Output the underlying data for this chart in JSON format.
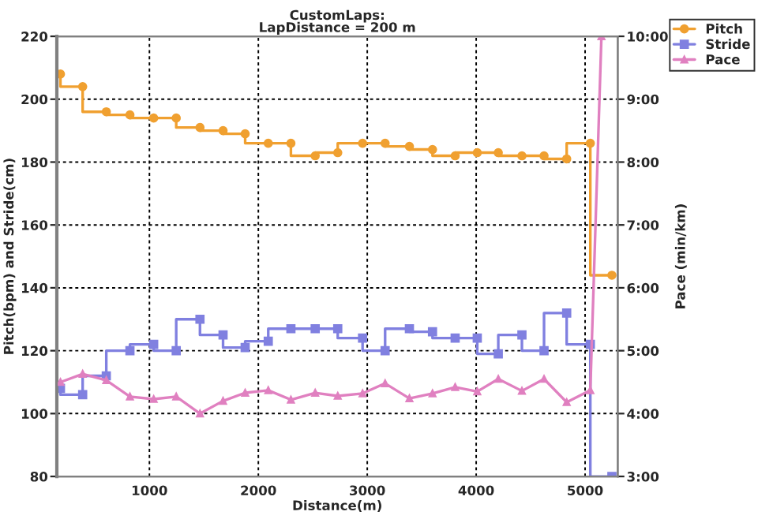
{
  "chart_data": {
    "type": "step",
    "title": "CustomLaps:\nLapDistance = 200 m",
    "xlabel": "Distance(m)",
    "ylabel": "Pitch(bpm) and Stride(cm)",
    "y2label": "Pace (min/km)",
    "x": [
      183,
      387,
      604,
      821,
      1039,
      1246,
      1464,
      1676,
      1879,
      2091,
      2299,
      2522,
      2729,
      2957,
      3164,
      3387,
      3599,
      3807,
      4010,
      4203,
      4420,
      4623,
      4831,
      5048,
      5246
    ],
    "series": [
      {
        "name": "Pitch",
        "marker": "circle",
        "color": "#f0a030",
        "values": [
          208,
          204,
          196,
          195,
          194,
          194,
          191,
          190,
          189,
          186,
          186,
          182,
          183,
          186,
          186,
          185,
          184,
          182,
          183,
          183,
          182,
          182,
          181,
          186,
          144
        ]
      },
      {
        "name": "Stride",
        "marker": "square",
        "color": "#8080e0",
        "values": [
          108,
          106,
          112,
          120,
          122,
          120,
          130,
          125,
          121,
          123,
          127,
          127,
          127,
          124,
          120,
          127,
          126,
          124,
          124,
          119,
          125,
          120,
          132,
          122,
          80
        ]
      },
      {
        "name": "Pace",
        "type": "line",
        "marker": "triangle",
        "axis": "y2",
        "color": "#e080c0",
        "x": [
          183,
          387,
          604,
          821,
          1039,
          1246,
          1464,
          1676,
          1879,
          2091,
          2299,
          2522,
          2729,
          2957,
          3164,
          3387,
          3599,
          3807,
          4010,
          4203,
          4420,
          4623,
          4831,
          5048,
          5150
        ],
        "values": [
          4.5,
          4.63,
          4.53,
          4.27,
          4.23,
          4.27,
          4.0,
          4.2,
          4.33,
          4.37,
          4.22,
          4.33,
          4.28,
          4.32,
          4.48,
          4.24,
          4.32,
          4.42,
          4.35,
          4.55,
          4.36,
          4.55,
          4.18,
          4.37,
          10.0
        ]
      }
    ],
    "xlim": [
      150,
      5300
    ],
    "xticks": [
      1000,
      2000,
      3000,
      4000,
      5000
    ],
    "ylim": [
      80,
      220
    ],
    "yticks": [
      80,
      100,
      120,
      140,
      160,
      180,
      200,
      220
    ],
    "y2lim": [
      3,
      10
    ],
    "y2ticks": [
      {
        "value": 3,
        "label": "3:00"
      },
      {
        "value": 4,
        "label": "4:00"
      },
      {
        "value": 5,
        "label": "5:00"
      },
      {
        "value": 6,
        "label": "6:00"
      },
      {
        "value": 7,
        "label": "7:00"
      },
      {
        "value": 8,
        "label": "8:00"
      },
      {
        "value": 9,
        "label": "9:00"
      },
      {
        "value": 10,
        "label": "10:00"
      }
    ],
    "grid": true,
    "legend": "top right"
  }
}
